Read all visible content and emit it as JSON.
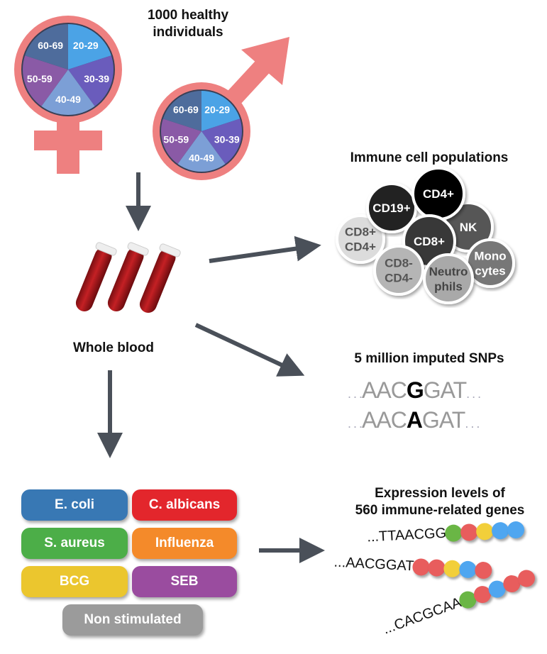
{
  "cohort": {
    "title_line1": "1000 healthy",
    "title_line2": "individuals",
    "age_groups": [
      "20-29",
      "30-39",
      "40-49",
      "50-59",
      "60-69"
    ],
    "age_colors": [
      "#4ba3e6",
      "#6a5cbc",
      "#7c9fd6",
      "#8a5aa6",
      "#4e6c9c"
    ],
    "symbol_color": "#ee8080"
  },
  "blood": {
    "label": "Whole blood"
  },
  "immune": {
    "title": "Immune cell populations",
    "cells": [
      {
        "label1": "CD8+",
        "label2": "CD4+",
        "fill": "#dcdcdc",
        "text": "#555"
      },
      {
        "label1": "NK",
        "label2": "",
        "fill": "#575757",
        "text": "#fff"
      },
      {
        "label1": "CD19+",
        "label2": "",
        "fill": "#222222",
        "text": "#fff"
      },
      {
        "label1": "CD4+",
        "label2": "",
        "fill": "#000000",
        "text": "#fff"
      },
      {
        "label1": "CD8+",
        "label2": "",
        "fill": "#383838",
        "text": "#fff"
      },
      {
        "label1": "CD8-",
        "label2": "CD4-",
        "fill": "#b5b5b5",
        "text": "#555"
      },
      {
        "label1": "Mono",
        "label2": "cytes",
        "fill": "#777777",
        "text": "#fff"
      },
      {
        "label1": "Neutro",
        "label2": "phils",
        "fill": "#a9a9a9",
        "text": "#444"
      }
    ]
  },
  "snps": {
    "title": "5 million imputed SNPs",
    "dots": ". . .",
    "seq1": {
      "pre": "AAC",
      "allele": "G",
      "post": "GAT"
    },
    "seq2": {
      "pre": "AAC",
      "allele": "A",
      "post": "GAT"
    }
  },
  "stimuli": [
    {
      "label": "E. coli",
      "color": "#3878b4"
    },
    {
      "label": "C. albicans",
      "color": "#e3262c"
    },
    {
      "label": "S. aureus",
      "color": "#4cae48"
    },
    {
      "label": "Influenza",
      "color": "#f48a2a"
    },
    {
      "label": "BCG",
      "color": "#ebc62e"
    },
    {
      "label": "SEB",
      "color": "#9a4c9f"
    },
    {
      "label": "Non stimulated",
      "color": "#9b9b9b"
    }
  ],
  "expression": {
    "title_line1": "Expression levels of",
    "title_line2": "560 immune-related genes",
    "rows": [
      {
        "seq": "...TTAACGG",
        "beads": [
          "#6ab645",
          "#e85d5d",
          "#f2cf3a",
          "#4fa6f0",
          "#4fa6f0"
        ]
      },
      {
        "seq": "...AACGGAT",
        "beads": [
          "#e85d5d",
          "#e85d5d",
          "#f2cf3a",
          "#4fa6f0",
          "#e85d5d"
        ]
      },
      {
        "seq": "...CACGCAA",
        "beads": [
          "#6ab645",
          "#e85d5d",
          "#4fa6f0",
          "#e85d5d",
          "#e85d5d"
        ]
      }
    ]
  }
}
